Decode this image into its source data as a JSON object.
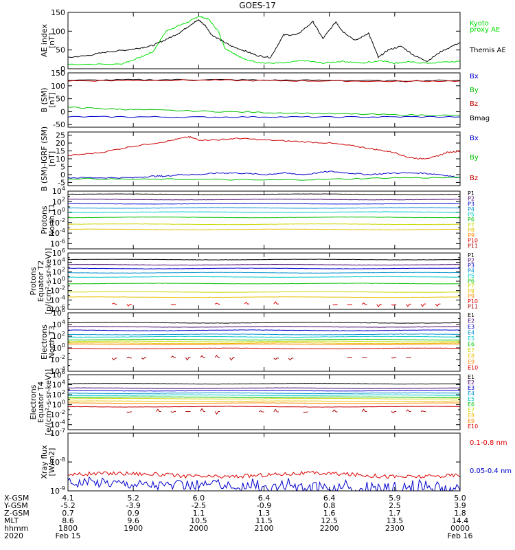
{
  "title": "GOES-17",
  "chart_data": [
    {
      "type": "line",
      "ylabel": [
        "AE index",
        "[nT]"
      ],
      "yaxis": "linear",
      "ylim": [
        0,
        150
      ],
      "yticks": [
        0,
        50,
        100,
        150
      ],
      "series": [
        {
          "name": "Kyoto proxy AE",
          "color": "#00e000",
          "legend": [
            "Kyoto",
            "proxy AE"
          ],
          "x": [
            0,
            0.8,
            1.1,
            1.3,
            1.5,
            1.7,
            1.85,
            2.0,
            2.15,
            2.3,
            2.4,
            2.55,
            2.7,
            3.0,
            3.3,
            3.6,
            3.9,
            4.2,
            4.5,
            4.8,
            5.0,
            5.2,
            5.5,
            6.0
          ],
          "y": [
            12,
            12,
            30,
            45,
            100,
            115,
            125,
            140,
            132,
            100,
            55,
            40,
            25,
            15,
            15,
            22,
            15,
            20,
            15,
            22,
            15,
            18,
            15,
            20
          ]
        },
        {
          "name": "Themis AE",
          "color": "#000000",
          "legend": [
            "Themis AE"
          ],
          "x": [
            0,
            0.3,
            0.6,
            0.9,
            1.1,
            1.3,
            1.5,
            1.7,
            1.9,
            2.0,
            2.1,
            2.2,
            2.35,
            2.5,
            2.7,
            2.9,
            3.1,
            3.3,
            3.5,
            3.75,
            3.9,
            4.1,
            4.2,
            4.4,
            4.6,
            4.75,
            4.9,
            5.1,
            5.3,
            5.5,
            5.7,
            6.0
          ],
          "y": [
            30,
            35,
            45,
            50,
            55,
            62,
            78,
            95,
            120,
            130,
            115,
            90,
            75,
            60,
            48,
            35,
            30,
            90,
            90,
            125,
            80,
            125,
            100,
            75,
            95,
            30,
            50,
            60,
            35,
            20,
            45,
            70
          ]
        }
      ]
    },
    {
      "type": "line",
      "ylabel": [
        "B (SM)",
        "[nT]"
      ],
      "yaxis": "linear",
      "ylim": [
        -60,
        150
      ],
      "yticks": [
        -50,
        0,
        50,
        100,
        150
      ],
      "legend": [
        {
          "name": "Bx",
          "color": "#0000cc"
        },
        {
          "name": "By",
          "color": "#00c000"
        },
        {
          "name": "Bz",
          "color": "#cc0000"
        },
        {
          "name": "Bmag",
          "color": "#000000"
        }
      ],
      "series": [
        {
          "name": "Bmag",
          "color": "#000000",
          "x": [
            0,
            1,
            2,
            3,
            4,
            5,
            6
          ],
          "y": [
            121,
            123,
            124,
            122,
            121,
            119,
            121
          ]
        },
        {
          "name": "Bz",
          "color": "#cc0000",
          "x": [
            0,
            1,
            2,
            3,
            4,
            5,
            6
          ],
          "y": [
            119,
            121,
            122,
            120,
            119,
            117,
            119
          ]
        },
        {
          "name": "By",
          "color": "#00c000",
          "x": [
            0,
            0.5,
            1,
            2,
            3,
            4,
            5,
            6
          ],
          "y": [
            17,
            12,
            8,
            2,
            -3,
            -8,
            -12,
            -15
          ]
        },
        {
          "name": "Bx",
          "color": "#0000cc",
          "x": [
            0,
            1,
            2,
            3,
            4,
            5,
            6
          ],
          "y": [
            -20,
            -20,
            -21,
            -20,
            -21,
            -20,
            -20
          ]
        }
      ]
    },
    {
      "type": "line",
      "ylabel": [
        "B (SM)-IGRF (SM)",
        "[nT]"
      ],
      "yaxis": "linear",
      "ylim": [
        -7,
        27
      ],
      "yticks": [
        -5,
        0,
        5,
        10,
        15,
        20,
        25
      ],
      "legend": [
        {
          "name": "Bx",
          "color": "#0000cc"
        },
        {
          "name": "By",
          "color": "#00c000"
        },
        {
          "name": "Bz",
          "color": "#cc0000"
        }
      ],
      "series": [
        {
          "name": "Bz",
          "color": "#cc0000",
          "x": [
            0,
            0.5,
            1,
            1.5,
            1.85,
            2.0,
            2.3,
            2.6,
            3.0,
            3.5,
            4.0,
            4.4,
            4.7,
            5.0,
            5.2,
            5.4,
            5.6,
            5.8,
            6.0
          ],
          "y": [
            12,
            14,
            18,
            21,
            24,
            22,
            22,
            23,
            22,
            21,
            20,
            18,
            16,
            14,
            11,
            10,
            11,
            14,
            15
          ]
        },
        {
          "name": "Bx",
          "color": "#0000cc",
          "x": [
            0,
            0.5,
            1,
            1.3,
            1.5,
            1.7,
            2.0,
            2.3,
            2.6,
            3.0,
            3.3,
            3.6,
            4.0,
            4.3,
            4.6,
            5.0,
            5.4,
            5.7,
            6.0
          ],
          "y": [
            -2,
            -2,
            -2,
            -1,
            -1,
            0,
            0,
            1,
            1,
            0,
            1,
            0,
            2,
            1,
            0,
            1,
            1,
            0,
            -2
          ]
        },
        {
          "name": "By",
          "color": "#00c000",
          "x": [
            0,
            1,
            2,
            3,
            4,
            5,
            6
          ],
          "y": [
            -2.5,
            -3,
            -3,
            -3.5,
            -3,
            -2,
            -2
          ]
        }
      ]
    },
    {
      "type": "line",
      "ylabel": [
        "Protons",
        "North T1"
      ],
      "yaxis": "log",
      "ylim_exp": [
        -7,
        4
      ],
      "ytick_exps": [
        -6,
        -4,
        -2,
        0,
        2,
        4
      ],
      "legend": [
        {
          "name": "P1",
          "color": "#000000"
        },
        {
          "name": "P2",
          "color": "#44006e"
        },
        {
          "name": "P3",
          "color": "#0000cc"
        },
        {
          "name": "P4",
          "color": "#0090d0"
        },
        {
          "name": "P5",
          "color": "#00c8c8"
        },
        {
          "name": "P6",
          "color": "#00c000"
        },
        {
          "name": "P7",
          "color": "#c8d800"
        },
        {
          "name": "P8",
          "color": "#e8c000"
        },
        {
          "name": "P9",
          "color": "#ff8800"
        },
        {
          "name": "P10",
          "color": "#dd0000"
        },
        {
          "name": "P11",
          "color": "#aa0000"
        }
      ],
      "series": [
        {
          "name": "P1",
          "color": "#000000",
          "level": 3.4
        },
        {
          "name": "P2",
          "color": "#44006e",
          "level": 2.4
        },
        {
          "name": "P3",
          "color": "#0000cc",
          "level": 1.6
        },
        {
          "name": "P4",
          "color": "#0090d0",
          "level": 0.8
        },
        {
          "name": "P5",
          "color": "#00c8c8",
          "level": 0.0
        },
        {
          "name": "P6",
          "color": "#00c000",
          "level": -1.0
        },
        {
          "name": "P7",
          "color": "#c8d800",
          "level": -2.3
        },
        {
          "name": "P8",
          "color": "#e8c000",
          "level": -3.3
        }
      ]
    },
    {
      "type": "line",
      "ylabel": [
        "Protons",
        "Equator T2",
        "[p/(cm²-s-sr-keV)]"
      ],
      "yaxis": "log",
      "ylim_exp": [
        -6,
        6
      ],
      "ytick_exps": [
        -6,
        -4,
        -2,
        0,
        2,
        4,
        6
      ],
      "legend": [
        {
          "name": "P1",
          "color": "#000000"
        },
        {
          "name": "P2",
          "color": "#44006e"
        },
        {
          "name": "P3",
          "color": "#0000cc"
        },
        {
          "name": "P4",
          "color": "#0090d0"
        },
        {
          "name": "P5",
          "color": "#00c8c8"
        },
        {
          "name": "P6",
          "color": "#00c000"
        },
        {
          "name": "P7",
          "color": "#c8d800"
        },
        {
          "name": "P8",
          "color": "#e8c000"
        },
        {
          "name": "P9",
          "color": "#ff8800"
        },
        {
          "name": "P10",
          "color": "#dd0000"
        },
        {
          "name": "P11",
          "color": "#aa0000"
        }
      ],
      "series": [
        {
          "name": "P1",
          "color": "#000000",
          "level": 4.6
        },
        {
          "name": "P2",
          "color": "#44006e",
          "level": 3.5
        },
        {
          "name": "P3",
          "color": "#0000cc",
          "level": 2.7
        },
        {
          "name": "P4",
          "color": "#0090d0",
          "level": 1.8
        },
        {
          "name": "P5",
          "color": "#00c8c8",
          "level": 0.9
        },
        {
          "name": "P6",
          "color": "#00c000",
          "level": -0.5
        },
        {
          "name": "P7",
          "color": "#c8d800",
          "level": -2.3
        },
        {
          "name": "P8",
          "color": "#e8c000",
          "level": -3.4
        },
        {
          "name": "P10",
          "color": "#dd0000",
          "level": -4.9,
          "gap": true
        }
      ]
    },
    {
      "type": "line",
      "ylabel": [
        "Electrons",
        "North T3"
      ],
      "yaxis": "log",
      "ylim_exp": [
        -4,
        6
      ],
      "ytick_exps": [
        -4,
        -2,
        0,
        2,
        4,
        6
      ],
      "legend": [
        {
          "name": "E1",
          "color": "#000000"
        },
        {
          "name": "E2",
          "color": "#44006e"
        },
        {
          "name": "E3",
          "color": "#0000cc"
        },
        {
          "name": "E4",
          "color": "#0090d0"
        },
        {
          "name": "E5",
          "color": "#00c8c8"
        },
        {
          "name": "E6",
          "color": "#00c000"
        },
        {
          "name": "E7",
          "color": "#c8d800"
        },
        {
          "name": "E8",
          "color": "#e8c000"
        },
        {
          "name": "E9",
          "color": "#ff8800"
        },
        {
          "name": "E10",
          "color": "#dd0000"
        }
      ],
      "series": [
        {
          "name": "E1",
          "color": "#000000",
          "level": 4.3
        },
        {
          "name": "E2",
          "color": "#44006e",
          "level": 3.6
        },
        {
          "name": "E3",
          "color": "#0000cc",
          "level": 3.0
        },
        {
          "name": "E4",
          "color": "#0090d0",
          "level": 2.3
        },
        {
          "name": "E5",
          "color": "#00c8c8",
          "level": 1.9
        },
        {
          "name": "E6",
          "color": "#00c000",
          "level": 1.4
        },
        {
          "name": "E7",
          "color": "#c8d800",
          "level": 1.1
        },
        {
          "name": "E8",
          "color": "#e8c000",
          "level": 0.8
        },
        {
          "name": "E9",
          "color": "#ff8800",
          "level": 0.6
        },
        {
          "name": "E10",
          "color": "#cc0000",
          "level": -0.1
        },
        {
          "name": "E10",
          "color": "#aa0000",
          "level": -1.7,
          "gap": true
        }
      ]
    },
    {
      "type": "line",
      "ylabel": [
        "Electrons",
        "Equator T4",
        "[e/(cm²-s-sr-keV)]"
      ],
      "yaxis": "log",
      "ylim_exp": [
        -5,
        6
      ],
      "ytick_exps": [
        -4,
        -2,
        0,
        2,
        4,
        6
      ],
      "legend": [
        {
          "name": "E1",
          "color": "#000000"
        },
        {
          "name": "E2",
          "color": "#44006e"
        },
        {
          "name": "E3",
          "color": "#0000cc"
        },
        {
          "name": "E4",
          "color": "#0090d0"
        },
        {
          "name": "E5",
          "color": "#00c8c8"
        },
        {
          "name": "E6",
          "color": "#00c000"
        },
        {
          "name": "E7",
          "color": "#c8d800"
        },
        {
          "name": "E8",
          "color": "#e8c000"
        },
        {
          "name": "E9",
          "color": "#ff8800"
        },
        {
          "name": "E10",
          "color": "#dd0000"
        }
      ],
      "series": [
        {
          "name": "E1",
          "color": "#000000",
          "level": 4.2
        },
        {
          "name": "E2",
          "color": "#44006e",
          "level": 3.3
        },
        {
          "name": "E3",
          "color": "#0000cc",
          "level": 2.8
        },
        {
          "name": "E4",
          "color": "#0090d0",
          "level": 2.3
        },
        {
          "name": "E5",
          "color": "#00c8c8",
          "level": 1.9
        },
        {
          "name": "E6",
          "color": "#00c000",
          "level": 1.5
        },
        {
          "name": "E7",
          "color": "#c8d800",
          "level": 1.2
        },
        {
          "name": "E8",
          "color": "#e8c000",
          "level": 0.7
        },
        {
          "name": "E9",
          "color": "#ff8800",
          "level": 0.3
        },
        {
          "name": "E10",
          "color": "#cc0000",
          "level": -0.4
        },
        {
          "name": "E10",
          "color": "#aa0000",
          "level": -1.4,
          "gap": true
        }
      ]
    },
    {
      "type": "line",
      "ylabel": [
        "Xray flux",
        "[W/m2]"
      ],
      "yaxis": "log",
      "ylim_exp": [
        -9,
        -7
      ],
      "ytick_exps": [
        -9,
        -8,
        -7
      ],
      "legend": [
        {
          "name": "0.1-0.8 nm",
          "color": "#dd0000"
        },
        {
          "name": "0.05-0.4 nm",
          "color": "#0000cc"
        }
      ],
      "series": [
        {
          "name": "0.1-0.8 nm",
          "color": "#dd0000",
          "level": -8.45,
          "noise": 0.07
        },
        {
          "name": "0.05-0.4 nm",
          "color": "#0000cc",
          "level": -8.75,
          "noise": 0.18,
          "lower_x": [
            2.5,
            6.0
          ],
          "lower_by": 0.15
        }
      ]
    }
  ],
  "xaxis": {
    "x_range_hours": [
      0,
      6
    ],
    "tick_hours": [
      0,
      1,
      2,
      3,
      4,
      5,
      6
    ],
    "labels": [
      {
        "name": "X-GSM",
        "values": [
          "4.1",
          "5.2",
          "6.0",
          "6.4",
          "6.4",
          "5.9",
          "5.0"
        ]
      },
      {
        "name": "Y-GSM",
        "values": [
          "-5.2",
          "-3.9",
          "-2.5",
          "-0.9",
          "0.8",
          "2.5",
          "3.9"
        ]
      },
      {
        "name": "Z-GSM",
        "values": [
          "0.7",
          "0.9",
          "1.1",
          "1.3",
          "1.6",
          "1.7",
          "1.8"
        ]
      },
      {
        "name": "MLT",
        "values": [
          "8.6",
          "9.6",
          "10.5",
          "11.5",
          "12.5",
          "13.5",
          "14.4"
        ]
      },
      {
        "name": "hhmm",
        "values": [
          "1800",
          "1900",
          "2000",
          "2100",
          "2200",
          "2300",
          "0000"
        ]
      }
    ],
    "year": "2020",
    "start_date": "Feb 15",
    "end_date": "Feb 16"
  }
}
